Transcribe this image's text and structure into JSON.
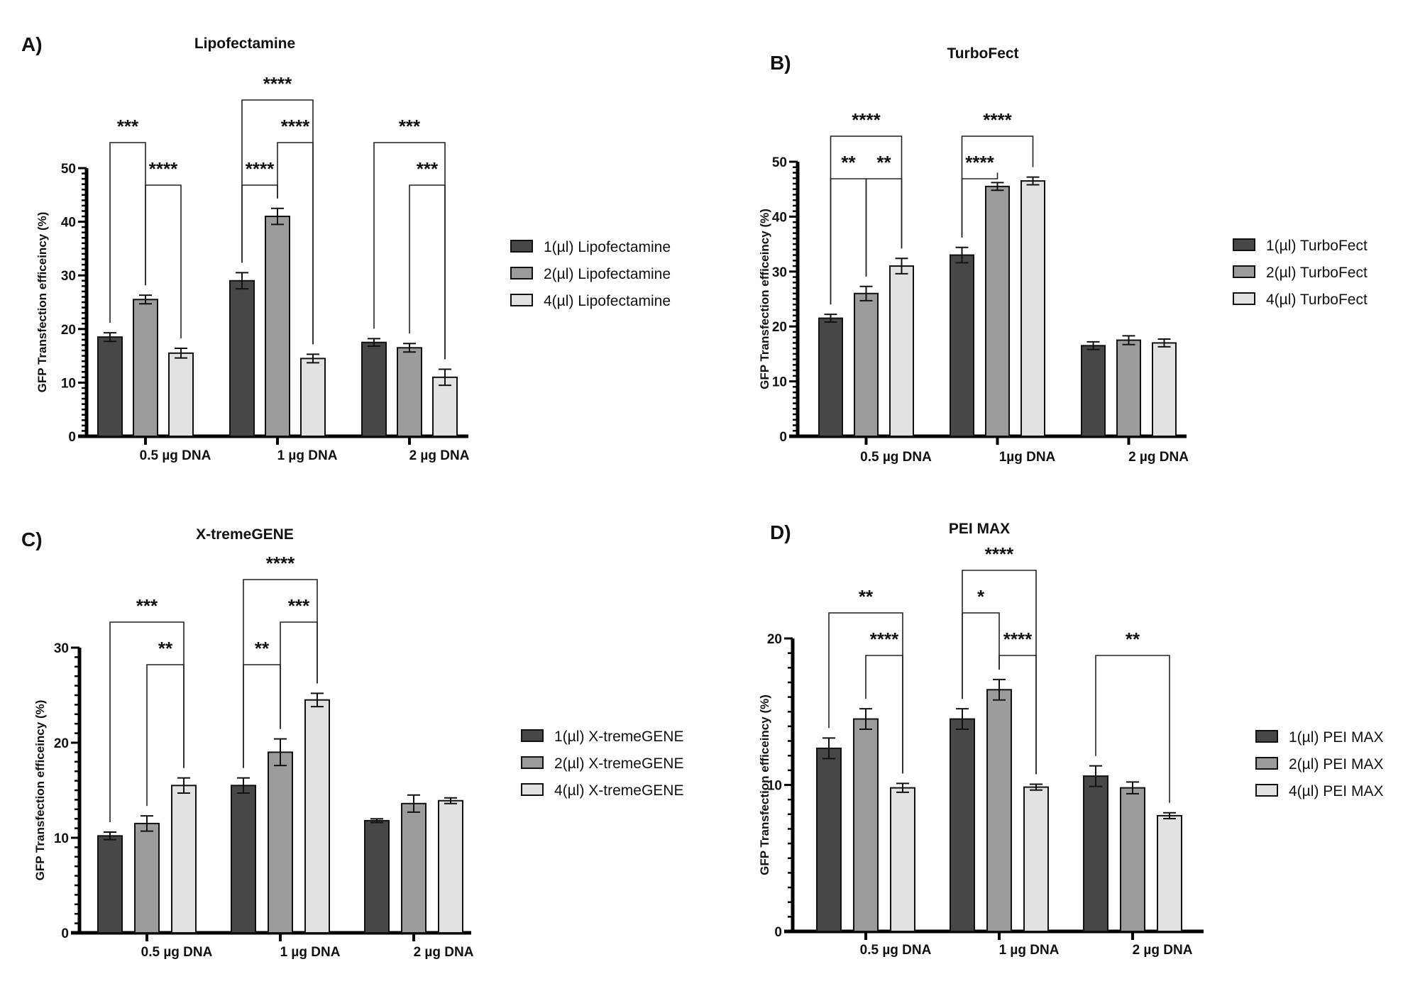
{
  "figure": {
    "series_colors": [
      "#474747",
      "#9c9c9c",
      "#e2e2e2"
    ]
  },
  "chart_data": [
    {
      "panel": "A)",
      "type": "bar",
      "title": "Lipofectamine",
      "ylabel": "GFP Transfection efficeincy (%)",
      "xlabel": "",
      "ylim": [
        0,
        50
      ],
      "yticks": [
        0,
        10,
        20,
        30,
        40,
        50
      ],
      "categories": [
        "0.5  µg DNA",
        "1 µg DNA",
        "2  µg DNA"
      ],
      "legend_position": "right",
      "series": [
        {
          "name": "1(µl) Lipofectamine",
          "values": [
            18.5,
            29.0,
            17.5
          ],
          "errors": [
            0.8,
            1.5,
            0.7
          ]
        },
        {
          "name": "2(µl) Lipofectamine",
          "values": [
            25.5,
            41.0,
            16.5
          ],
          "errors": [
            0.8,
            1.5,
            0.8
          ]
        },
        {
          "name": "4(µl) Lipofectamine",
          "values": [
            15.5,
            14.5,
            11.0
          ],
          "errors": [
            0.9,
            0.8,
            1.5
          ]
        }
      ],
      "significance": [
        {
          "category": 0,
          "from": 0,
          "to": 1,
          "label": "***",
          "level": 2
        },
        {
          "category": 0,
          "from": 1,
          "to": 2,
          "label": "****",
          "level": 1
        },
        {
          "category": 1,
          "from": 0,
          "to": 2,
          "label": "****",
          "level": 3
        },
        {
          "category": 1,
          "from": 1,
          "to": 2,
          "label": "****",
          "level": 2
        },
        {
          "category": 1,
          "from": 0,
          "to": 1,
          "label": "****",
          "level": 1
        },
        {
          "category": 2,
          "from": 0,
          "to": 2,
          "label": "***",
          "level": 2
        },
        {
          "category": 2,
          "from": 1,
          "to": 2,
          "label": "***",
          "level": 1
        }
      ]
    },
    {
      "panel": "B)",
      "type": "bar",
      "title": "TurboFect",
      "ylabel": "GFP Transfection efficeincy (%)",
      "xlabel": "",
      "ylim": [
        0,
        50
      ],
      "yticks": [
        0,
        10,
        20,
        30,
        40,
        50
      ],
      "categories": [
        "0.5 µg DNA",
        "1µg DNA",
        "2 µg DNA"
      ],
      "legend_position": "right",
      "series": [
        {
          "name": "1(µl) TurboFect",
          "values": [
            21.5,
            33.0,
            16.5
          ],
          "errors": [
            0.7,
            1.4,
            0.7
          ]
        },
        {
          "name": "2(µl) TurboFect",
          "values": [
            26.0,
            45.5,
            17.5
          ],
          "errors": [
            1.3,
            0.7,
            0.8
          ]
        },
        {
          "name": "4(µl) TurboFect",
          "values": [
            31.0,
            46.5,
            17.0
          ],
          "errors": [
            1.4,
            0.7,
            0.7
          ]
        }
      ],
      "significance": [
        {
          "category": 0,
          "from": 0,
          "to": 2,
          "label": "****",
          "level": 2
        },
        {
          "category": 0,
          "from": 0,
          "to": 1,
          "label": "**",
          "level": 1
        },
        {
          "category": 0,
          "from": 1,
          "to": 2,
          "label": "**",
          "level": 1
        },
        {
          "category": 1,
          "from": 0,
          "to": 2,
          "label": "****",
          "level": 2
        },
        {
          "category": 1,
          "from": 0,
          "to": 1,
          "label": "****",
          "level": 1
        }
      ]
    },
    {
      "panel": "C)",
      "type": "bar",
      "title": "X-tremeGENE",
      "ylabel": "GFP Transfection efficeincy (%)",
      "xlabel": "",
      "ylim": [
        0,
        30
      ],
      "yticks": [
        0,
        10,
        20,
        30
      ],
      "categories": [
        "0.5  µg DNA",
        "1  µg DNA",
        "2 µg DNA"
      ],
      "legend_position": "right",
      "series": [
        {
          "name": "1(µl) X-tremeGENE",
          "values": [
            10.2,
            15.5,
            11.8
          ],
          "errors": [
            0.4,
            0.8,
            0.2
          ]
        },
        {
          "name": "2(µl) X-tremeGENE",
          "values": [
            11.5,
            19.0,
            13.6
          ],
          "errors": [
            0.8,
            1.4,
            0.9
          ]
        },
        {
          "name": "4(µl) X-tremeGENE",
          "values": [
            15.5,
            24.5,
            13.9
          ],
          "errors": [
            0.8,
            0.7,
            0.3
          ]
        }
      ],
      "significance": [
        {
          "category": 0,
          "from": 0,
          "to": 2,
          "label": "***",
          "level": 2
        },
        {
          "category": 0,
          "from": 1,
          "to": 2,
          "label": "**",
          "level": 1
        },
        {
          "category": 1,
          "from": 0,
          "to": 2,
          "label": "****",
          "level": 3
        },
        {
          "category": 1,
          "from": 1,
          "to": 2,
          "label": "***",
          "level": 2
        },
        {
          "category": 1,
          "from": 0,
          "to": 1,
          "label": "**",
          "level": 1
        }
      ]
    },
    {
      "panel": "D)",
      "type": "bar",
      "title": "PEI MAX",
      "ylabel": "GFP Transfection efficeincy (%)",
      "xlabel": "",
      "ylim": [
        0,
        20
      ],
      "yticks": [
        0,
        10,
        20
      ],
      "categories": [
        "0.5 µg DNA",
        "1 µg DNA",
        "2 µg DNA"
      ],
      "legend_position": "right",
      "series": [
        {
          "name": "1(µl) PEI MAX",
          "values": [
            12.5,
            14.5,
            10.6
          ],
          "errors": [
            0.7,
            0.7,
            0.7
          ]
        },
        {
          "name": "2(µl) PEI MAX",
          "values": [
            14.5,
            16.5,
            9.8
          ],
          "errors": [
            0.7,
            0.7,
            0.4
          ]
        },
        {
          "name": "4(µl) PEI MAX",
          "values": [
            9.8,
            9.85,
            7.9
          ],
          "errors": [
            0.3,
            0.2,
            0.2
          ]
        }
      ],
      "significance": [
        {
          "category": 0,
          "from": 0,
          "to": 2,
          "label": "**",
          "level": 2
        },
        {
          "category": 0,
          "from": 1,
          "to": 2,
          "label": "****",
          "level": 1
        },
        {
          "category": 1,
          "from": 0,
          "to": 2,
          "label": "****",
          "level": 3
        },
        {
          "category": 1,
          "from": 0,
          "to": 1,
          "label": "*",
          "level": 2
        },
        {
          "category": 1,
          "from": 1,
          "to": 2,
          "label": "****",
          "level": 1
        },
        {
          "category": 2,
          "from": 0,
          "to": 2,
          "label": "**",
          "level": 1
        }
      ]
    }
  ]
}
